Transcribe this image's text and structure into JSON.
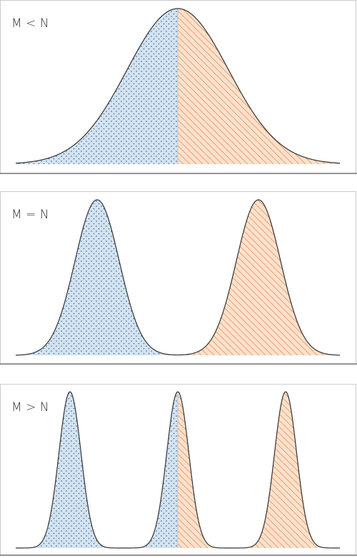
{
  "panels": [
    {
      "label": "M < N"
    },
    {
      "label": "M = N"
    },
    {
      "label": "M > N"
    }
  ]
}
